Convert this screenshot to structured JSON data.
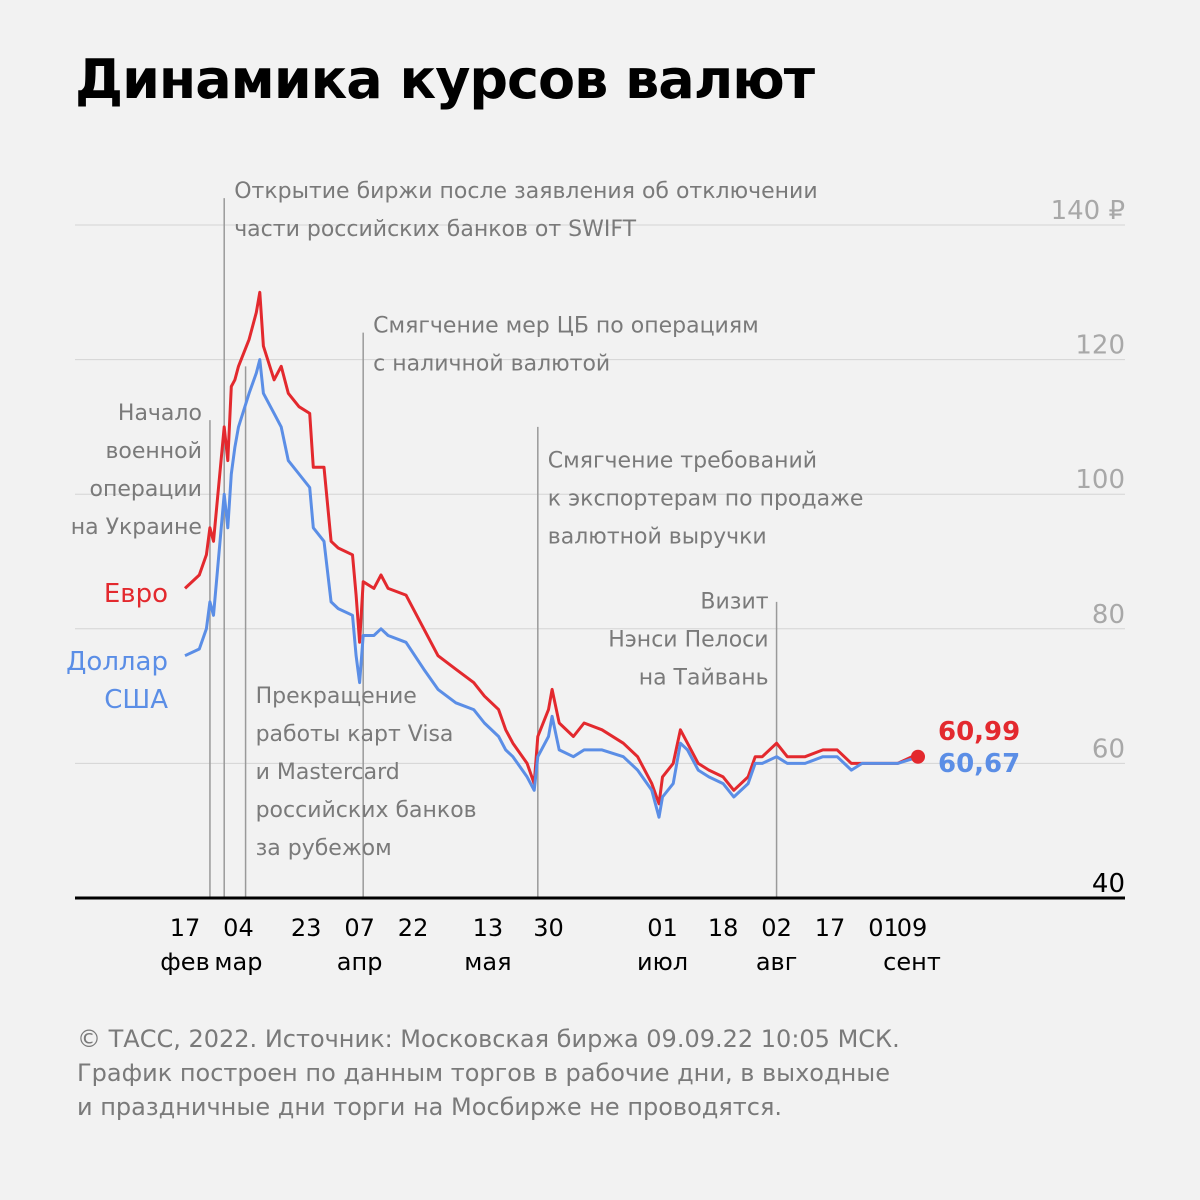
{
  "title": "Динамика курсов валют",
  "footer": [
    "© ТАСС, 2022. Источник: Московская биржа 09.09.22 10:05 МСК.",
    "График построен по данным торгов в рабочие дни, в выходные",
    "и праздничные дни торги на Мосбирже не проводятся."
  ],
  "colors": {
    "euro": "#e3292e",
    "usd": "#5b8ee6",
    "text_gray": "#7a7a7a",
    "grid": "#d4d4d4"
  },
  "chart_data": {
    "type": "line",
    "y_axis": {
      "range": [
        40,
        140
      ],
      "ticks": [
        40,
        60,
        80,
        100,
        120,
        140
      ],
      "tick_labels": [
        "40",
        "60",
        "80",
        "100",
        "120",
        "140 ₽"
      ],
      "position": "right"
    },
    "x_axis": {
      "range": [
        "2022-02-17",
        "2022-09-09"
      ],
      "ticks": [
        {
          "date": "2022-02-17",
          "day": "17",
          "month": "фев"
        },
        {
          "date": "2022-03-04",
          "day": "04",
          "month": "мар"
        },
        {
          "date": "2022-03-23",
          "day": "23",
          "month": ""
        },
        {
          "date": "2022-04-07",
          "day": "07",
          "month": "апр"
        },
        {
          "date": "2022-04-22",
          "day": "22",
          "month": ""
        },
        {
          "date": "2022-05-13",
          "day": "13",
          "month": "мая"
        },
        {
          "date": "2022-05-30",
          "day": "30",
          "month": ""
        },
        {
          "date": "2022-07-01",
          "day": "01",
          "month": "июл"
        },
        {
          "date": "2022-07-18",
          "day": "18",
          "month": ""
        },
        {
          "date": "2022-08-02",
          "day": "02",
          "month": "авг"
        },
        {
          "date": "2022-08-17",
          "day": "17",
          "month": ""
        },
        {
          "date": "2022-09-01",
          "day": "01",
          "month": ""
        },
        {
          "date": "2022-09-09",
          "day": "09",
          "month": "сент"
        }
      ]
    },
    "series": [
      {
        "name": "Евро",
        "color": "#e3292e",
        "last_label": "60,99",
        "points": [
          [
            "2022-02-17",
            86
          ],
          [
            "2022-02-21",
            88
          ],
          [
            "2022-02-23",
            91
          ],
          [
            "2022-02-24",
            95
          ],
          [
            "2022-02-25",
            93
          ],
          [
            "2022-02-28",
            110
          ],
          [
            "2022-03-01",
            105
          ],
          [
            "2022-03-02",
            116
          ],
          [
            "2022-03-03",
            117
          ],
          [
            "2022-03-04",
            119
          ],
          [
            "2022-03-07",
            123
          ],
          [
            "2022-03-09",
            127
          ],
          [
            "2022-03-10",
            130
          ],
          [
            "2022-03-11",
            122
          ],
          [
            "2022-03-14",
            117
          ],
          [
            "2022-03-16",
            119
          ],
          [
            "2022-03-18",
            115
          ],
          [
            "2022-03-21",
            113
          ],
          [
            "2022-03-24",
            112
          ],
          [
            "2022-03-25",
            104
          ],
          [
            "2022-03-28",
            104
          ],
          [
            "2022-03-30",
            93
          ],
          [
            "2022-04-01",
            92
          ],
          [
            "2022-04-05",
            91
          ],
          [
            "2022-04-06",
            85
          ],
          [
            "2022-04-07",
            78
          ],
          [
            "2022-04-08",
            87
          ],
          [
            "2022-04-11",
            86
          ],
          [
            "2022-04-13",
            88
          ],
          [
            "2022-04-15",
            86
          ],
          [
            "2022-04-20",
            85
          ],
          [
            "2022-04-25",
            80
          ],
          [
            "2022-04-29",
            76
          ],
          [
            "2022-05-04",
            74
          ],
          [
            "2022-05-09",
            72
          ],
          [
            "2022-05-12",
            70
          ],
          [
            "2022-05-16",
            68
          ],
          [
            "2022-05-18",
            65
          ],
          [
            "2022-05-20",
            63
          ],
          [
            "2022-05-24",
            60
          ],
          [
            "2022-05-26",
            57
          ],
          [
            "2022-05-27",
            64
          ],
          [
            "2022-05-30",
            68
          ],
          [
            "2022-05-31",
            71
          ],
          [
            "2022-06-02",
            66
          ],
          [
            "2022-06-06",
            64
          ],
          [
            "2022-06-09",
            66
          ],
          [
            "2022-06-14",
            65
          ],
          [
            "2022-06-20",
            63
          ],
          [
            "2022-06-24",
            61
          ],
          [
            "2022-06-28",
            57
          ],
          [
            "2022-06-30",
            54
          ],
          [
            "2022-07-01",
            58
          ],
          [
            "2022-07-04",
            60
          ],
          [
            "2022-07-06",
            65
          ],
          [
            "2022-07-08",
            63
          ],
          [
            "2022-07-11",
            60
          ],
          [
            "2022-07-14",
            59
          ],
          [
            "2022-07-18",
            58
          ],
          [
            "2022-07-21",
            56
          ],
          [
            "2022-07-25",
            58
          ],
          [
            "2022-07-27",
            61
          ],
          [
            "2022-07-29",
            61
          ],
          [
            "2022-08-02",
            63
          ],
          [
            "2022-08-05",
            61
          ],
          [
            "2022-08-10",
            61
          ],
          [
            "2022-08-15",
            62
          ],
          [
            "2022-08-19",
            62
          ],
          [
            "2022-08-23",
            60
          ],
          [
            "2022-08-26",
            60
          ],
          [
            "2022-08-31",
            60
          ],
          [
            "2022-09-05",
            60
          ],
          [
            "2022-09-09",
            60.99
          ]
        ]
      },
      {
        "name": "Доллар США",
        "color": "#5b8ee6",
        "last_label": "60,67",
        "points": [
          [
            "2022-02-17",
            76
          ],
          [
            "2022-02-21",
            77
          ],
          [
            "2022-02-23",
            80
          ],
          [
            "2022-02-24",
            84
          ],
          [
            "2022-02-25",
            82
          ],
          [
            "2022-02-28",
            100
          ],
          [
            "2022-03-01",
            95
          ],
          [
            "2022-03-02",
            103
          ],
          [
            "2022-03-03",
            107
          ],
          [
            "2022-03-04",
            110
          ],
          [
            "2022-03-07",
            115
          ],
          [
            "2022-03-09",
            118
          ],
          [
            "2022-03-10",
            120
          ],
          [
            "2022-03-11",
            115
          ],
          [
            "2022-03-14",
            112
          ],
          [
            "2022-03-16",
            110
          ],
          [
            "2022-03-18",
            105
          ],
          [
            "2022-03-21",
            103
          ],
          [
            "2022-03-24",
            101
          ],
          [
            "2022-03-25",
            95
          ],
          [
            "2022-03-28",
            93
          ],
          [
            "2022-03-30",
            84
          ],
          [
            "2022-04-01",
            83
          ],
          [
            "2022-04-05",
            82
          ],
          [
            "2022-04-06",
            76
          ],
          [
            "2022-04-07",
            72
          ],
          [
            "2022-04-08",
            79
          ],
          [
            "2022-04-11",
            79
          ],
          [
            "2022-04-13",
            80
          ],
          [
            "2022-04-15",
            79
          ],
          [
            "2022-04-20",
            78
          ],
          [
            "2022-04-25",
            74
          ],
          [
            "2022-04-29",
            71
          ],
          [
            "2022-05-04",
            69
          ],
          [
            "2022-05-09",
            68
          ],
          [
            "2022-05-12",
            66
          ],
          [
            "2022-05-16",
            64
          ],
          [
            "2022-05-18",
            62
          ],
          [
            "2022-05-20",
            61
          ],
          [
            "2022-05-24",
            58
          ],
          [
            "2022-05-26",
            56
          ],
          [
            "2022-05-27",
            61
          ],
          [
            "2022-05-30",
            64
          ],
          [
            "2022-05-31",
            67
          ],
          [
            "2022-06-02",
            62
          ],
          [
            "2022-06-06",
            61
          ],
          [
            "2022-06-09",
            62
          ],
          [
            "2022-06-14",
            62
          ],
          [
            "2022-06-20",
            61
          ],
          [
            "2022-06-24",
            59
          ],
          [
            "2022-06-28",
            56
          ],
          [
            "2022-06-30",
            52
          ],
          [
            "2022-07-01",
            55
          ],
          [
            "2022-07-04",
            57
          ],
          [
            "2022-07-06",
            63
          ],
          [
            "2022-07-08",
            62
          ],
          [
            "2022-07-11",
            59
          ],
          [
            "2022-07-14",
            58
          ],
          [
            "2022-07-18",
            57
          ],
          [
            "2022-07-21",
            55
          ],
          [
            "2022-07-25",
            57
          ],
          [
            "2022-07-27",
            60
          ],
          [
            "2022-07-29",
            60
          ],
          [
            "2022-08-02",
            61
          ],
          [
            "2022-08-05",
            60
          ],
          [
            "2022-08-10",
            60
          ],
          [
            "2022-08-15",
            61
          ],
          [
            "2022-08-19",
            61
          ],
          [
            "2022-08-23",
            59
          ],
          [
            "2022-08-26",
            60
          ],
          [
            "2022-08-31",
            60
          ],
          [
            "2022-09-05",
            60
          ],
          [
            "2022-09-09",
            60.67
          ]
        ]
      }
    ],
    "annotations": [
      {
        "date": "2022-02-24",
        "text": [
          "Начало",
          "военной",
          "операции",
          "на Украине"
        ],
        "align": "right",
        "y_top": 111,
        "text_y": 111
      },
      {
        "date": "2022-02-28",
        "text": [
          "Открытие биржи после заявления об отключении",
          "части российских банков от SWIFT"
        ],
        "align": "left",
        "y_top": 144,
        "text_y": 144
      },
      {
        "date": "2022-03-06",
        "text": [
          "Прекращение",
          "работы карт Visa",
          "и Mastercard",
          "российских банков",
          "за рубежом"
        ],
        "align": "left",
        "y_top": 119,
        "text_y": 69
      },
      {
        "date": "2022-04-08",
        "text": [
          "Смягчение мер ЦБ по операциям",
          "с наличной валютой"
        ],
        "align": "left",
        "y_top": 124,
        "text_y": 124
      },
      {
        "date": "2022-05-27",
        "text": [
          "Смягчение требований",
          "к экспортерам по продаже",
          "валютной выручки"
        ],
        "align": "left",
        "y_top": 110,
        "text_y": 104
      },
      {
        "date": "2022-08-02",
        "text": [
          "Визит",
          "Нэнси Пелоси",
          "на Тайвань"
        ],
        "align": "right",
        "y_top": 84,
        "text_y": 83
      }
    ]
  }
}
